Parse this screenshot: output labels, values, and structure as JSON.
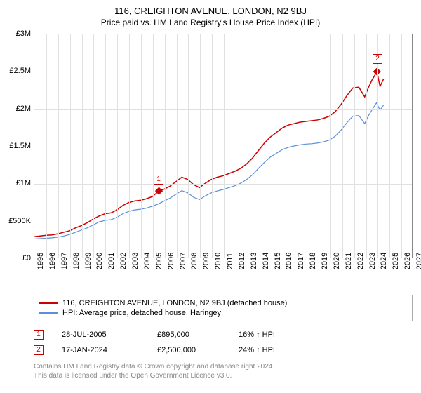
{
  "title": "116, CREIGHTON AVENUE, LONDON, N2 9BJ",
  "subtitle": "Price paid vs. HM Land Registry's House Price Index (HPI)",
  "chart": {
    "type": "line",
    "background_color": "#ffffff",
    "grid_color": "#e0e0e0",
    "border_color": "#888888",
    "xlim": [
      1995,
      2027
    ],
    "ylim": [
      0,
      3000000
    ],
    "ytick_step": 500000,
    "ytick_labels": [
      "£0",
      "£500K",
      "£1M",
      "£1.5M",
      "£2M",
      "£2.5M",
      "£3M"
    ],
    "xticks": [
      1995,
      1996,
      1997,
      1998,
      1999,
      2000,
      2001,
      2002,
      2003,
      2004,
      2005,
      2006,
      2007,
      2008,
      2009,
      2010,
      2011,
      2012,
      2013,
      2014,
      2015,
      2016,
      2017,
      2018,
      2019,
      2020,
      2021,
      2022,
      2023,
      2024,
      2025,
      2026,
      2027
    ],
    "series": [
      {
        "name": "116, CREIGHTON AVENUE, LONDON, N2 9BJ (detached house)",
        "color": "#cc0000",
        "line_width": 1.5,
        "data": [
          [
            1995,
            280000
          ],
          [
            1995.5,
            290000
          ],
          [
            1996,
            300000
          ],
          [
            1996.5,
            305000
          ],
          [
            1997,
            320000
          ],
          [
            1997.5,
            340000
          ],
          [
            1998,
            360000
          ],
          [
            1998.5,
            400000
          ],
          [
            1999,
            430000
          ],
          [
            1999.5,
            470000
          ],
          [
            2000,
            520000
          ],
          [
            2000.5,
            560000
          ],
          [
            2001,
            590000
          ],
          [
            2001.5,
            600000
          ],
          [
            2002,
            640000
          ],
          [
            2002.5,
            700000
          ],
          [
            2003,
            740000
          ],
          [
            2003.5,
            760000
          ],
          [
            2004,
            770000
          ],
          [
            2004.5,
            790000
          ],
          [
            2005,
            820000
          ],
          [
            2005.56,
            895000
          ],
          [
            2006,
            920000
          ],
          [
            2006.5,
            960000
          ],
          [
            2007,
            1020000
          ],
          [
            2007.5,
            1080000
          ],
          [
            2008,
            1050000
          ],
          [
            2008.5,
            980000
          ],
          [
            2009,
            940000
          ],
          [
            2009.5,
            1000000
          ],
          [
            2010,
            1050000
          ],
          [
            2010.5,
            1080000
          ],
          [
            2011,
            1100000
          ],
          [
            2011.5,
            1130000
          ],
          [
            2012,
            1160000
          ],
          [
            2012.5,
            1200000
          ],
          [
            2013,
            1260000
          ],
          [
            2013.5,
            1340000
          ],
          [
            2014,
            1440000
          ],
          [
            2014.5,
            1540000
          ],
          [
            2015,
            1620000
          ],
          [
            2015.5,
            1680000
          ],
          [
            2016,
            1740000
          ],
          [
            2016.5,
            1780000
          ],
          [
            2017,
            1800000
          ],
          [
            2017.5,
            1820000
          ],
          [
            2018,
            1830000
          ],
          [
            2018.5,
            1840000
          ],
          [
            2019,
            1850000
          ],
          [
            2019.5,
            1870000
          ],
          [
            2020,
            1900000
          ],
          [
            2020.5,
            1960000
          ],
          [
            2021,
            2060000
          ],
          [
            2021.5,
            2180000
          ],
          [
            2022,
            2280000
          ],
          [
            2022.5,
            2290000
          ],
          [
            2023,
            2160000
          ],
          [
            2023.3,
            2280000
          ],
          [
            2023.6,
            2380000
          ],
          [
            2024.04,
            2500000
          ],
          [
            2024.3,
            2300000
          ],
          [
            2024.6,
            2400000
          ]
        ]
      },
      {
        "name": "HPI: Average price, detached house, Haringey",
        "color": "#5b8fd8",
        "line_width": 1.2,
        "data": [
          [
            1995,
            250000
          ],
          [
            1995.5,
            255000
          ],
          [
            1996,
            260000
          ],
          [
            1996.5,
            265000
          ],
          [
            1997,
            275000
          ],
          [
            1997.5,
            290000
          ],
          [
            1998,
            310000
          ],
          [
            1998.5,
            340000
          ],
          [
            1999,
            370000
          ],
          [
            1999.5,
            400000
          ],
          [
            2000,
            440000
          ],
          [
            2000.5,
            480000
          ],
          [
            2001,
            500000
          ],
          [
            2001.5,
            510000
          ],
          [
            2002,
            540000
          ],
          [
            2002.5,
            590000
          ],
          [
            2003,
            620000
          ],
          [
            2003.5,
            640000
          ],
          [
            2004,
            650000
          ],
          [
            2004.5,
            665000
          ],
          [
            2005,
            690000
          ],
          [
            2005.5,
            720000
          ],
          [
            2006,
            760000
          ],
          [
            2006.5,
            800000
          ],
          [
            2007,
            850000
          ],
          [
            2007.5,
            900000
          ],
          [
            2008,
            870000
          ],
          [
            2008.5,
            810000
          ],
          [
            2009,
            780000
          ],
          [
            2009.5,
            830000
          ],
          [
            2010,
            870000
          ],
          [
            2010.5,
            895000
          ],
          [
            2011,
            915000
          ],
          [
            2011.5,
            940000
          ],
          [
            2012,
            965000
          ],
          [
            2012.5,
            1000000
          ],
          [
            2013,
            1050000
          ],
          [
            2013.5,
            1115000
          ],
          [
            2014,
            1200000
          ],
          [
            2014.5,
            1280000
          ],
          [
            2015,
            1350000
          ],
          [
            2015.5,
            1400000
          ],
          [
            2016,
            1450000
          ],
          [
            2016.5,
            1480000
          ],
          [
            2017,
            1500000
          ],
          [
            2017.5,
            1515000
          ],
          [
            2018,
            1525000
          ],
          [
            2018.5,
            1530000
          ],
          [
            2019,
            1540000
          ],
          [
            2019.5,
            1555000
          ],
          [
            2020,
            1580000
          ],
          [
            2020.5,
            1630000
          ],
          [
            2021,
            1715000
          ],
          [
            2021.5,
            1815000
          ],
          [
            2022,
            1900000
          ],
          [
            2022.5,
            1910000
          ],
          [
            2023,
            1800000
          ],
          [
            2023.3,
            1900000
          ],
          [
            2023.6,
            1980000
          ],
          [
            2024,
            2080000
          ],
          [
            2024.3,
            1980000
          ],
          [
            2024.6,
            2050000
          ]
        ]
      }
    ],
    "markers": [
      {
        "label": "1",
        "x": 2005.56,
        "y": 895000,
        "box_color": "#cc0000"
      },
      {
        "label": "2",
        "x": 2024.04,
        "y": 2500000,
        "box_color": "#cc0000"
      }
    ]
  },
  "legend": {
    "series1_label": "116, CREIGHTON AVENUE, LONDON, N2 9BJ (detached house)",
    "series2_label": "HPI: Average price, detached house, Haringey"
  },
  "transactions": [
    {
      "num": "1",
      "date": "28-JUL-2005",
      "price": "£895,000",
      "pct": "16% ↑ HPI",
      "color": "#cc0000"
    },
    {
      "num": "2",
      "date": "17-JAN-2024",
      "price": "£2,500,000",
      "pct": "24% ↑ HPI",
      "color": "#cc0000"
    }
  ],
  "footer": {
    "line1": "Contains HM Land Registry data © Crown copyright and database right 2024.",
    "line2": "This data is licensed under the Open Government Licence v3.0."
  }
}
